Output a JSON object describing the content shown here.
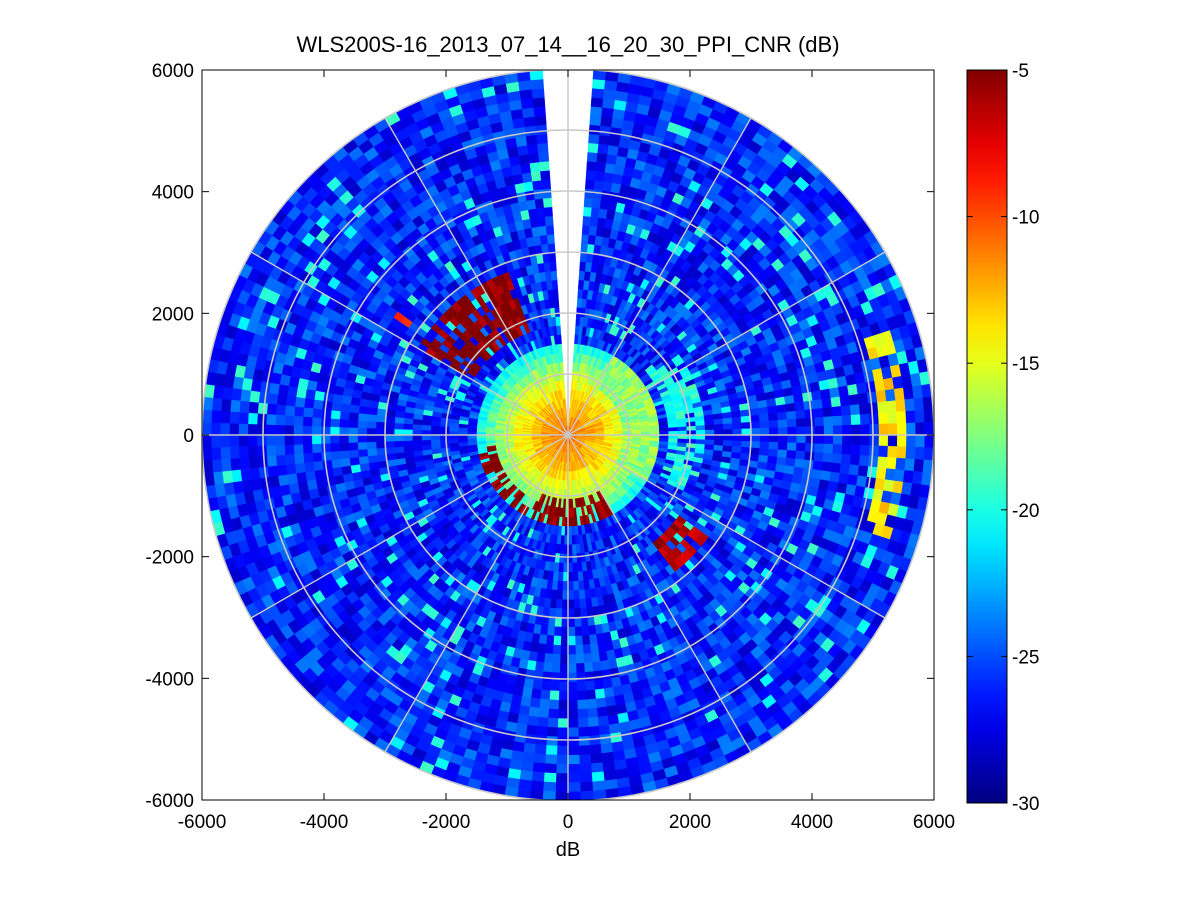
{
  "chart_data": {
    "type": "heatmap",
    "subtype": "polar-ppi",
    "title": "WLS200S-16_2013_07_14__16_20_30_PPI_CNR (dB)",
    "xlabel": "dB",
    "ylabel": "",
    "xlim": [
      -6000,
      6000
    ],
    "ylim": [
      -6000,
      6000
    ],
    "x_ticks": [
      "-6000",
      "-4000",
      "-2000",
      "0",
      "2000",
      "4000",
      "6000"
    ],
    "y_ticks": [
      "6000",
      "4000",
      "2000",
      "0",
      "-2000",
      "-4000",
      "-6000"
    ],
    "grid": true,
    "max_range": 6000,
    "range_rings": [
      1000,
      2000,
      3000,
      4000,
      5000,
      6000
    ],
    "spoke_angles_deg": [
      0,
      30,
      60,
      90,
      120,
      150,
      180,
      210,
      240,
      270,
      300,
      330
    ],
    "gap_azimuth_deg": [
      -3.5,
      3.5
    ],
    "colorbar": {
      "colormap": "jet",
      "range": [
        -30,
        -5
      ],
      "ticks": [
        "-5",
        "-10",
        "-15",
        "-20",
        "-25",
        "-30"
      ],
      "placement": "right"
    },
    "field": {
      "background_cnr_db": -26,
      "near_field_cnr_db": -14,
      "near_field_radius": 1500,
      "echoes": [
        {
          "r0": 1200,
          "r1": 1550,
          "az0": 208,
          "az1": 262,
          "cnr_db": -5
        },
        {
          "r0": 1750,
          "r1": 2900,
          "az0": 300,
          "az1": 340,
          "cnr_db": -5
        },
        {
          "r0": 1000,
          "r1": 1550,
          "az0": 150,
          "az1": 205,
          "cnr_db": -5
        },
        {
          "r0": 3200,
          "r1": 3400,
          "az0": 302,
          "az1": 306,
          "cnr_db": -8
        },
        {
          "r0": 5100,
          "r1": 5500,
          "az0": 72,
          "az1": 108,
          "cnr_db": -14
        },
        {
          "r0": 2300,
          "r1": 2900,
          "az0": 126,
          "az1": 142,
          "cnr_db": -6
        },
        {
          "r0": 1600,
          "r1": 2200,
          "az0": 55,
          "az1": 115,
          "cnr_db": -20
        }
      ]
    }
  }
}
